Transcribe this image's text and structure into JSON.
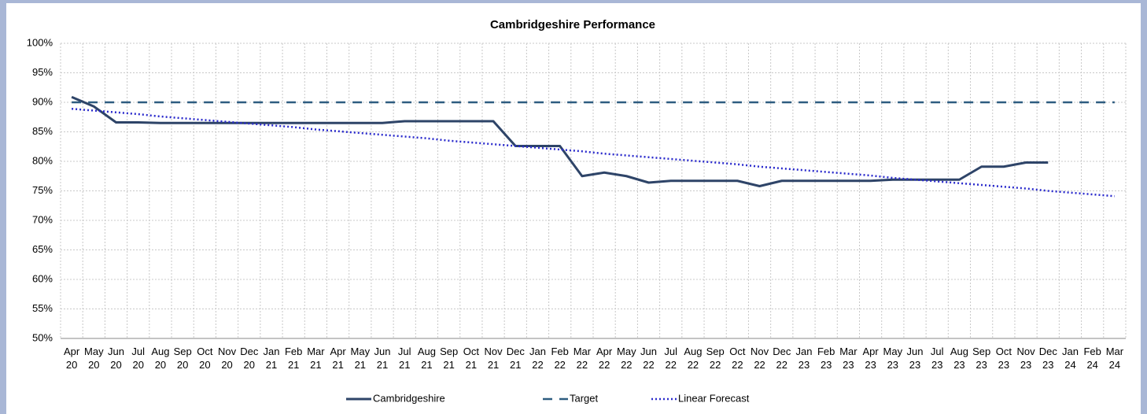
{
  "chart_data": {
    "type": "line",
    "title": "Cambridgeshire Performance",
    "categories": [
      "Apr 20",
      "May 20",
      "Jun 20",
      "Jul 20",
      "Aug 20",
      "Sep 20",
      "Oct 20",
      "Nov 20",
      "Dec 20",
      "Jan 21",
      "Feb 21",
      "Mar 21",
      "Apr 21",
      "May 21",
      "Jun 21",
      "Jul 21",
      "Aug 21",
      "Sep 21",
      "Oct 21",
      "Nov 21",
      "Dec 21",
      "Jan 22",
      "Feb 22",
      "Mar 22",
      "Apr 22",
      "May 22",
      "Jun 22",
      "Jul 22",
      "Aug 22",
      "Sep 22",
      "Oct 22",
      "Nov 22",
      "Dec 22",
      "Jan 23",
      "Feb 23",
      "Mar 23",
      "Apr 23",
      "May 23",
      "Jun 23",
      "Jul 23",
      "Aug 23",
      "Sep 23",
      "Oct 23",
      "Nov 23",
      "Dec 23",
      "Jan 24",
      "Feb 24",
      "Mar 24"
    ],
    "series": [
      {
        "name": "Cambridgeshire",
        "color": "#2e4468",
        "dash": "solid",
        "values": [
          90.9,
          89.3,
          86.6,
          86.6,
          86.5,
          86.5,
          86.5,
          86.5,
          86.5,
          86.5,
          86.5,
          86.5,
          86.5,
          86.5,
          86.5,
          86.8,
          86.8,
          86.8,
          86.8,
          86.8,
          82.6,
          82.6,
          82.6,
          77.5,
          78.1,
          77.5,
          76.4,
          76.7,
          76.7,
          76.7,
          76.7,
          75.8,
          76.7,
          76.7,
          76.7,
          76.7,
          76.7,
          76.9,
          76.9,
          76.9,
          76.9,
          79.1,
          79.1,
          79.8,
          79.8,
          null,
          null,
          null
        ]
      },
      {
        "name": "Target",
        "color": "#2e5c80",
        "dash": "dashed",
        "values": [
          90,
          90,
          90,
          90,
          90,
          90,
          90,
          90,
          90,
          90,
          90,
          90,
          90,
          90,
          90,
          90,
          90,
          90,
          90,
          90,
          90,
          90,
          90,
          90,
          90,
          90,
          90,
          90,
          90,
          90,
          90,
          90,
          90,
          90,
          90,
          90,
          90,
          90,
          90,
          90,
          90,
          90,
          90,
          90,
          90,
          90,
          90,
          90
        ]
      },
      {
        "name": "Linear Forecast",
        "color": "#2a2acc",
        "dash": "dotted",
        "values": [
          88.9,
          88.6,
          88.3,
          88.0,
          87.6,
          87.3,
          87.0,
          86.7,
          86.4,
          86.1,
          85.8,
          85.4,
          85.1,
          84.8,
          84.5,
          84.2,
          83.9,
          83.5,
          83.2,
          82.9,
          82.6,
          82.3,
          82.0,
          81.7,
          81.3,
          81.0,
          80.7,
          80.4,
          80.1,
          79.8,
          79.5,
          79.1,
          78.8,
          78.5,
          78.2,
          77.9,
          77.6,
          77.2,
          76.9,
          76.6,
          76.3,
          76.0,
          75.7,
          75.4,
          75.0,
          74.7,
          74.4,
          74.1
        ]
      }
    ],
    "ylim": [
      50,
      100
    ],
    "yticks": [
      {
        "value": 50,
        "label": "50%"
      },
      {
        "value": 55,
        "label": "55%"
      },
      {
        "value": 60,
        "label": "60%"
      },
      {
        "value": 65,
        "label": "65%"
      },
      {
        "value": 70,
        "label": "70%"
      },
      {
        "value": 75,
        "label": "75%"
      },
      {
        "value": 80,
        "label": "80%"
      },
      {
        "value": 85,
        "label": "85%"
      },
      {
        "value": 90,
        "label": "90%"
      },
      {
        "value": 95,
        "label": "95%"
      },
      {
        "value": 100,
        "label": "100%"
      }
    ],
    "grid": true,
    "legend": "bottom"
  }
}
